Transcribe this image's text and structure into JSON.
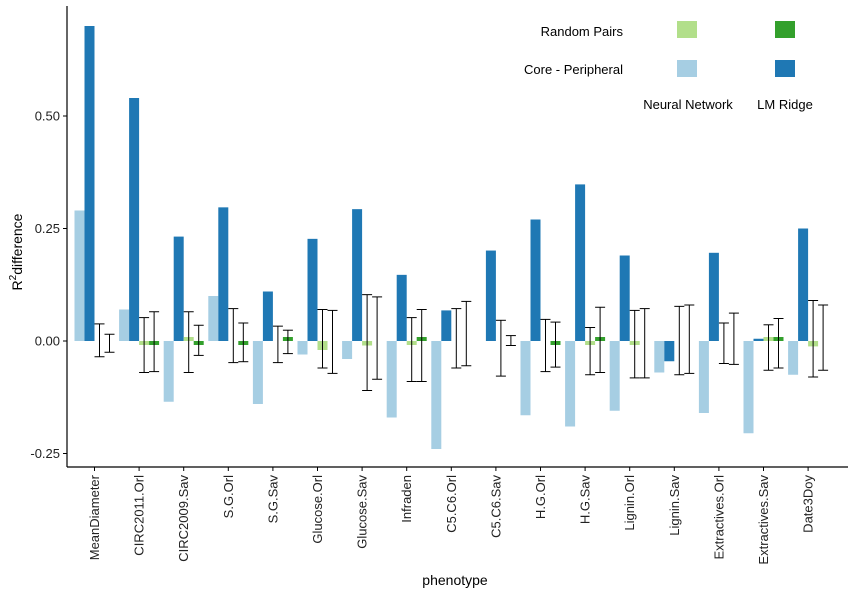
{
  "chart_data": {
    "type": "bar",
    "xlabel": "phenotype",
    "ylabel_main": "R",
    "ylabel_sup": "2",
    "ylabel_rest": "difference",
    "ylim": [
      -0.28,
      0.75
    ],
    "yticks": [
      -0.25,
      0.0,
      0.25,
      0.5
    ],
    "ytick_labels": [
      "-0.25",
      "0.00",
      "0.25",
      "0.50"
    ],
    "categories": [
      "MeanDiameter",
      "CIRC2011.Orl",
      "CIRC2009.Sav",
      "S.G.Orl",
      "S.G.Sav",
      "Glucose.Orl",
      "Glucose.Sav",
      "Infraden",
      "C5.C6.Orl",
      "C5.C6.Sav",
      "H.G.Orl",
      "H.G.Sav",
      "Lignin.Orl",
      "Lignin.Sav",
      "Extractives.Orl",
      "Extractives.Sav",
      "Date3Doy"
    ],
    "legend": {
      "rows": [
        "Random Pairs",
        "Core - Peripheral"
      ],
      "cols": [
        "Neural Network",
        "LM Ridge"
      ]
    },
    "colors": {
      "cp_nn": "#a6cee3",
      "cp_lm": "#1f78b4",
      "rp_nn": "#b2df8a",
      "rp_lm": "#33a02c"
    },
    "series": [
      {
        "key": "cp_nn",
        "values": [
          0.29,
          0.07,
          -0.135,
          0.1,
          -0.14,
          -0.03,
          -0.04,
          -0.17,
          -0.24,
          0.0,
          -0.165,
          -0.19,
          -0.155,
          -0.07,
          -0.16,
          -0.205,
          -0.075
        ]
      },
      {
        "key": "cp_lm",
        "values": [
          0.7,
          0.54,
          0.232,
          0.297,
          0.11,
          0.227,
          0.293,
          0.147,
          0.068,
          0.201,
          0.27,
          0.348,
          0.19,
          -0.045,
          0.196,
          0.005,
          0.25
        ]
      },
      {
        "key": "rp_nn",
        "values": [
          0.0,
          -0.005,
          0.005,
          0.0,
          0.0,
          -0.02,
          -0.01,
          -0.005,
          0.0,
          0.0,
          0.0,
          -0.005,
          -0.005,
          0.0,
          0.0,
          0.005,
          -0.012
        ]
      },
      {
        "key": "rp_lm",
        "values": [
          0.0,
          -0.005,
          -0.003,
          -0.008,
          0.007,
          0.0,
          0.0,
          0.005,
          0.0,
          0.0,
          -0.005,
          0.003,
          0.0,
          0.0,
          0.0,
          0.005,
          0.0
        ]
      }
    ],
    "errorbars": [
      {
        "series": "rp_nn",
        "low": [
          -0.035,
          -0.07,
          -0.07,
          -0.048,
          -0.048,
          -0.06,
          -0.11,
          -0.09,
          -0.06,
          -0.078,
          -0.068,
          -0.075,
          -0.082,
          -0.075,
          -0.05,
          -0.065,
          -0.08
        ]
      },
      {
        "series": "rp_nn",
        "high": [
          0.038,
          0.052,
          0.065,
          0.072,
          0.033,
          0.07,
          0.103,
          0.052,
          0.072,
          0.046,
          0.048,
          0.03,
          0.068,
          0.077,
          0.04,
          0.036,
          0.09
        ]
      },
      {
        "series": "rp_lm",
        "low": [
          -0.025,
          -0.068,
          -0.032,
          -0.046,
          -0.028,
          -0.072,
          -0.085,
          -0.09,
          -0.055,
          -0.01,
          -0.058,
          -0.07,
          -0.082,
          -0.072,
          -0.052,
          -0.06,
          -0.065
        ]
      },
      {
        "series": "rp_lm",
        "high": [
          0.015,
          0.065,
          0.035,
          0.04,
          0.024,
          0.068,
          0.098,
          0.07,
          0.088,
          0.012,
          0.042,
          0.075,
          0.072,
          0.08,
          0.062,
          0.05,
          0.08
        ]
      }
    ]
  }
}
